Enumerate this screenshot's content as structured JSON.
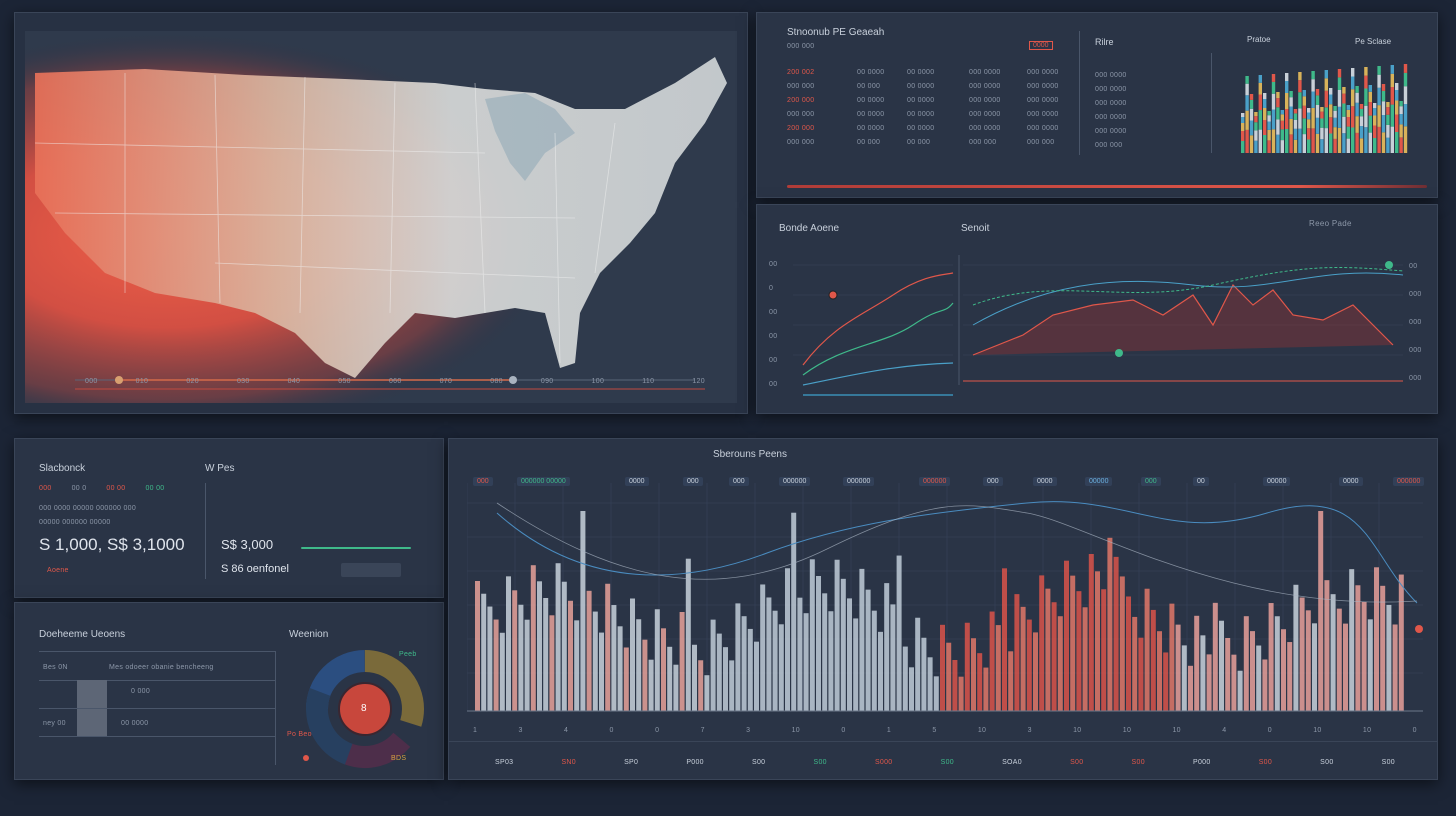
{
  "map_panel": {
    "timeline_ticks": [
      "000",
      "010",
      "020",
      "030",
      "040",
      "050",
      "060",
      "070",
      "080",
      "090",
      "100",
      "110",
      "120"
    ]
  },
  "stats_panel": {
    "title": "Stnoonub PE Geaeah",
    "badge": "0000",
    "right_header_a": "Rilre",
    "right_header_b": "Pratoe",
    "right_header_c": "Pe Sclase",
    "col_a": [
      "200 002",
      "000 000",
      "200 000",
      "000 000",
      "200 000",
      "000 000"
    ],
    "col_b": [
      "00 0000",
      "00 000",
      "00 0000",
      "00 0000",
      "00 0000",
      "00 000"
    ],
    "col_c": [
      "00 0000",
      "00 0000",
      "00 0000",
      "00 0000",
      "00 0000",
      "00 000"
    ],
    "col_d": [
      "000 0000",
      "000 0000",
      "000 0000",
      "000 0000",
      "000 0000",
      "000 000"
    ],
    "col_e": [
      "000 0000",
      "000 0000",
      "000 0000",
      "000 0000",
      "000 0000",
      "000 000"
    ]
  },
  "trend_panel": {
    "title_left": "Bonde Aoene",
    "title_mid": "Senoit",
    "title_right": "Reeo Pade",
    "left_axis": [
      "00",
      "0",
      "00",
      "00",
      "00",
      "00"
    ],
    "right_axis": [
      "00",
      "000",
      "000",
      "000",
      "000"
    ]
  },
  "kpi_panel": {
    "title": "Slacbonck",
    "title2": "W Pes",
    "big_value": "S 1,000, S$ 3,1000",
    "badge": "Aoene",
    "value2": "S$ 3,000",
    "value3": "S 86 oenfonel",
    "row1": [
      "000",
      "00 0",
      "00 00",
      "00 00"
    ],
    "row2": [
      "000 0000 00000 000000 000",
      "00000 000000 00000"
    ]
  },
  "detail_panel": {
    "title": "Doeheeme Ueoens",
    "title2": "Weenion",
    "header_a": "Bes 0N",
    "header_b": "Mes odoeer obanie bencheeng",
    "row_a": "ney 00",
    "row_val": "0 000",
    "row_val2": "00 0000",
    "donut_center": "8",
    "donut_top": "Peeb",
    "donut_left": "Po Beo",
    "donut_bottom": "BDS"
  },
  "bars_panel": {
    "title": "Sberouns Peens",
    "x_ticks": [
      "1",
      "3",
      "4",
      "0",
      "0",
      "7",
      "3",
      "10",
      "0",
      "1",
      "5",
      "10",
      "3",
      "10",
      "10",
      "10",
      "4",
      "0",
      "10",
      "10",
      "0"
    ],
    "top_chips": [
      "000",
      "000000 00000",
      "0000",
      "000",
      "000",
      "000000",
      "000000",
      "000000",
      "000",
      "0000",
      "00000",
      "000",
      "00",
      "00000",
      "0000",
      "000000"
    ],
    "bottom_labels": [
      "SP03",
      "SN0",
      "SP0",
      "P000",
      "S00",
      "S00",
      "S000",
      "S00",
      "SOA0",
      "S00",
      "S00",
      "P000",
      "S00",
      "S00",
      "S00"
    ]
  }
}
